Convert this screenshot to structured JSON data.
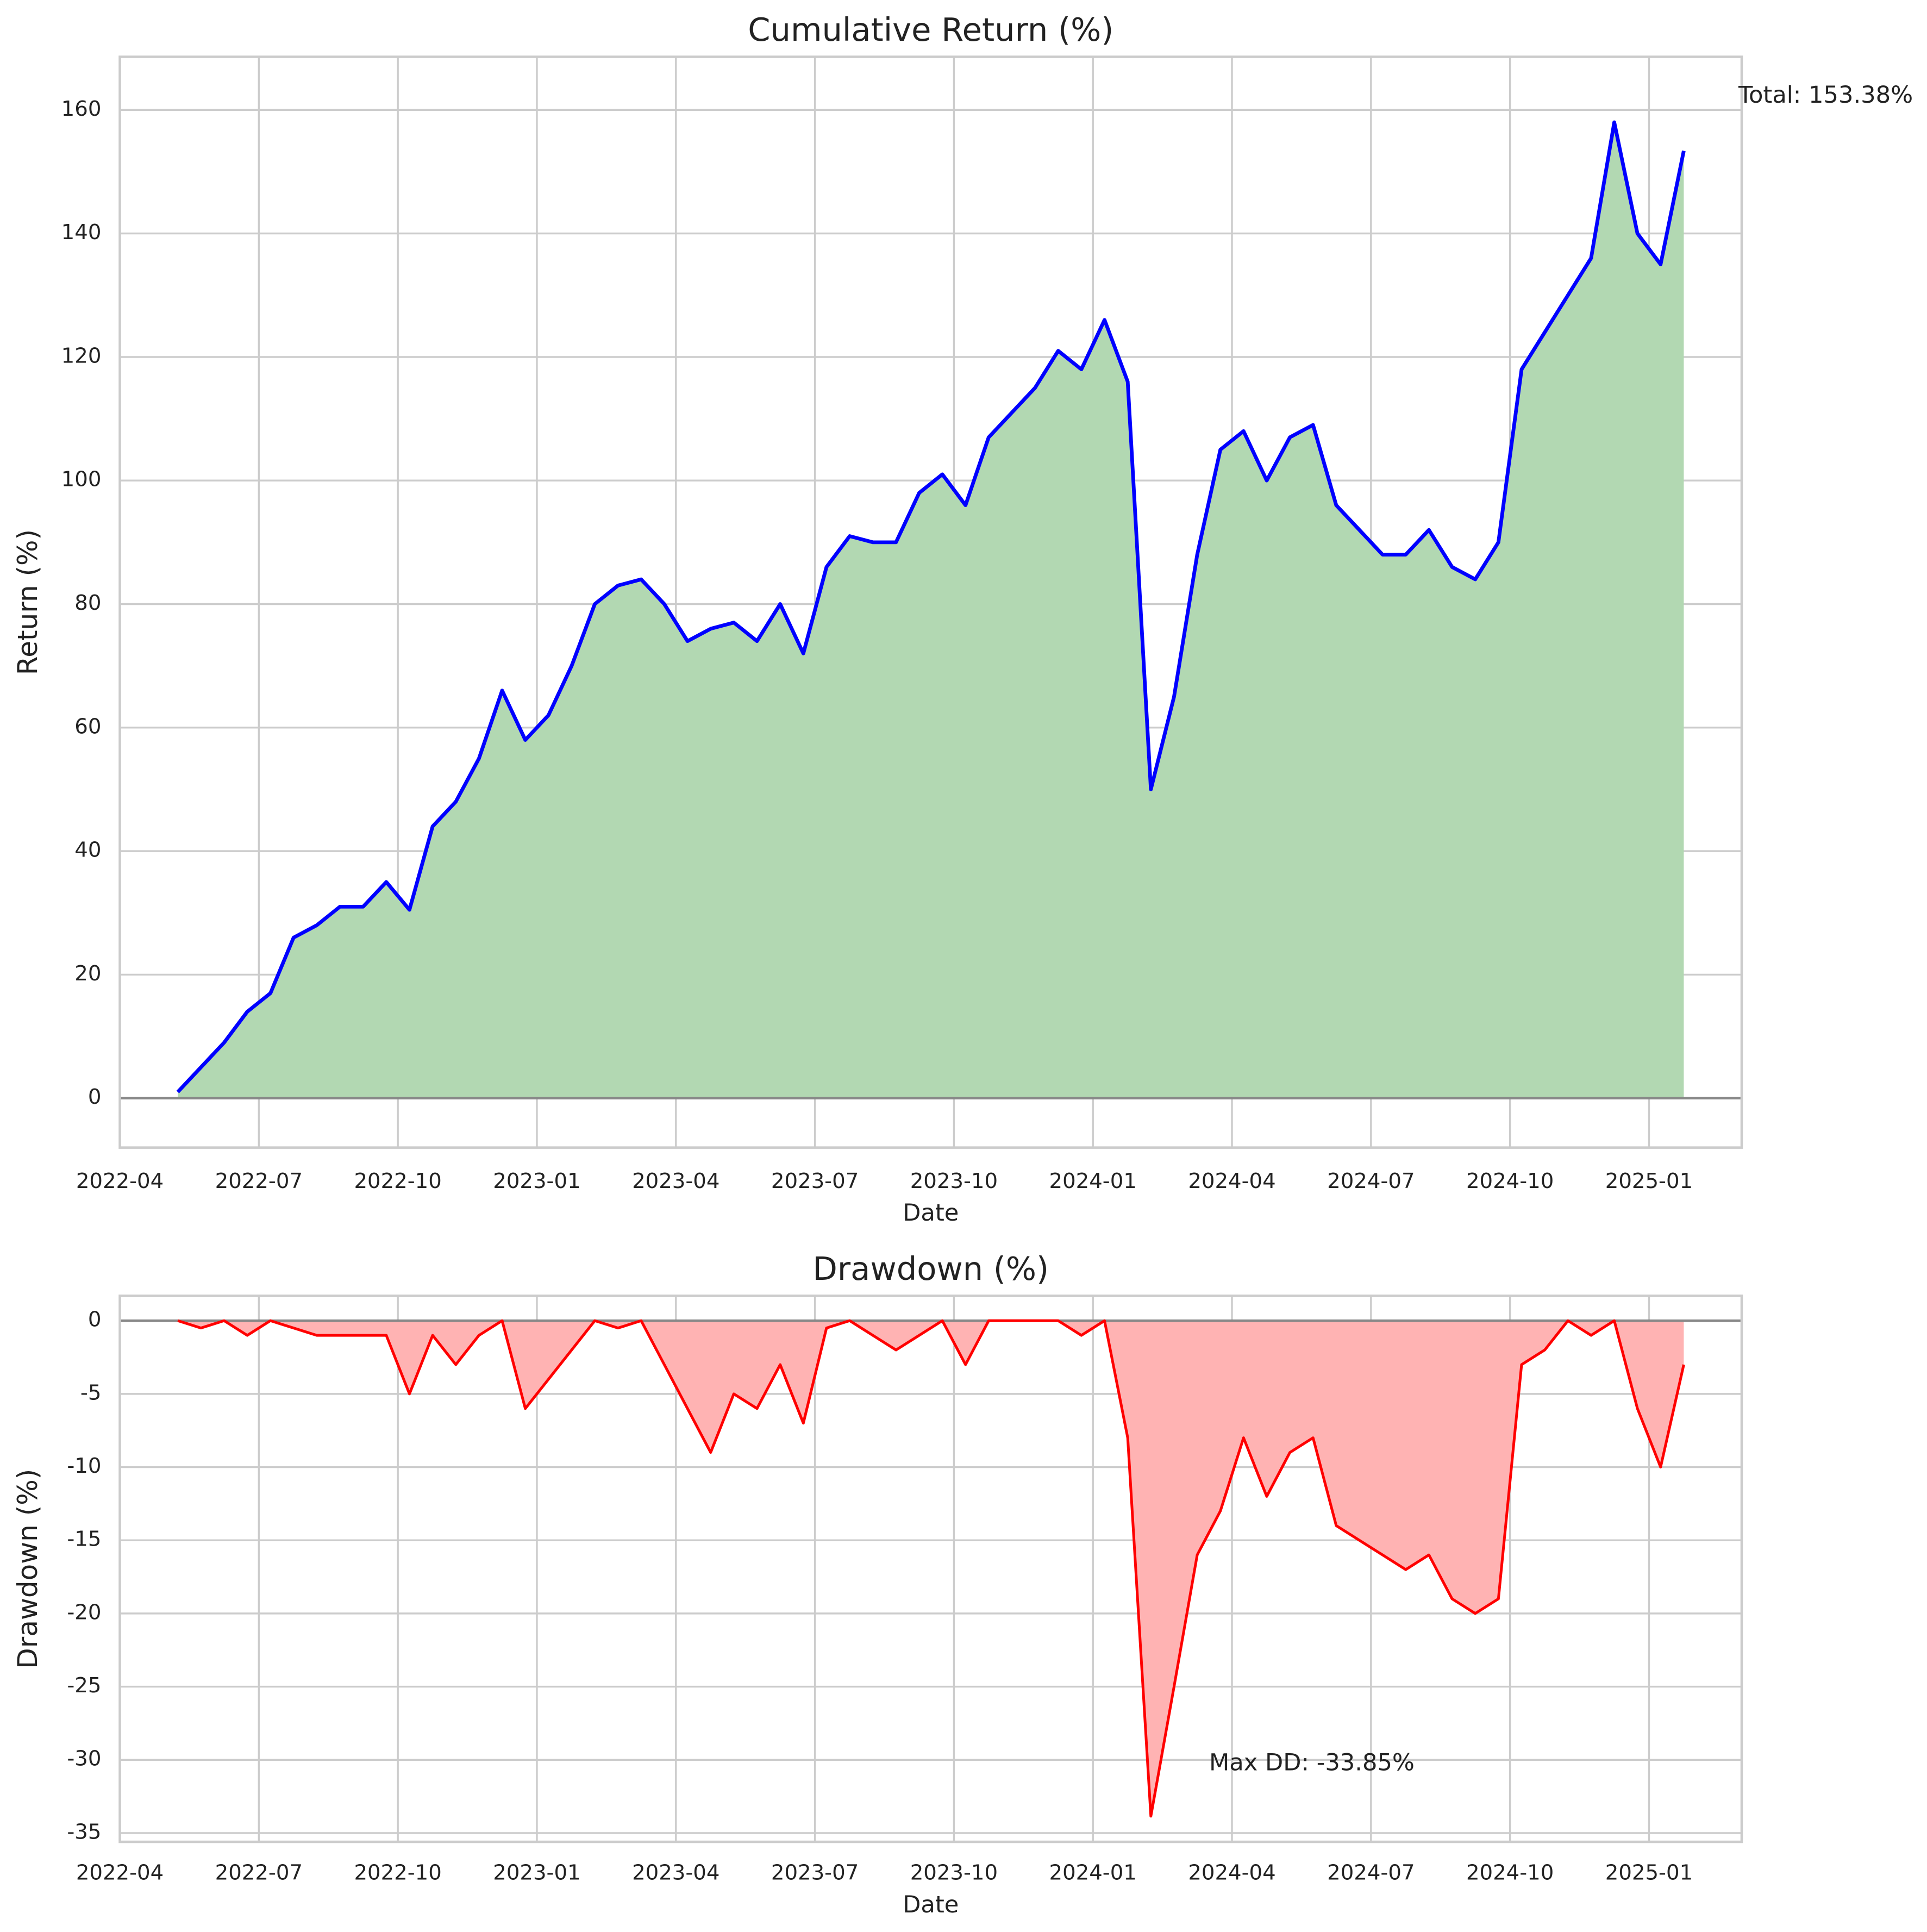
{
  "chart_data": [
    {
      "type": "line",
      "title": "Cumulative Return (%)",
      "xlabel": "Date",
      "ylabel": "Return (%)",
      "x": [
        "2022-05",
        "2022-05",
        "2022-06",
        "2022-06",
        "2022-07",
        "2022-07",
        "2022-08",
        "2022-08",
        "2022-09",
        "2022-09",
        "2022-10",
        "2022-10",
        "2022-11",
        "2022-11",
        "2022-12",
        "2022-12",
        "2023-01",
        "2023-01",
        "2023-02",
        "2023-02",
        "2023-03",
        "2023-03",
        "2023-04",
        "2023-04",
        "2023-05",
        "2023-05",
        "2023-06",
        "2023-06",
        "2023-07",
        "2023-07",
        "2023-08",
        "2023-08",
        "2023-09",
        "2023-09",
        "2023-10",
        "2023-10",
        "2023-11",
        "2023-11",
        "2023-12",
        "2023-12",
        "2024-01",
        "2024-01",
        "2024-02",
        "2024-02",
        "2024-03",
        "2024-03",
        "2024-04",
        "2024-04",
        "2024-05",
        "2024-05",
        "2024-06",
        "2024-06",
        "2024-07",
        "2024-07",
        "2024-08",
        "2024-08",
        "2024-09",
        "2024-09",
        "2024-10",
        "2024-10",
        "2024-11",
        "2024-11",
        "2024-12",
        "2024-12",
        "2025-01",
        "2025-01"
      ],
      "series": [
        {
          "color": "#0000ff",
          "fill": "#b2d8b2",
          "values": [
            1,
            5,
            9,
            14,
            17,
            26,
            28,
            31,
            31,
            35,
            30.5,
            44,
            48,
            55,
            66,
            58,
            62,
            70,
            80,
            83,
            84,
            80,
            74,
            76,
            77,
            74,
            80,
            72,
            86,
            91,
            90,
            90,
            98,
            101,
            96,
            107,
            111,
            115,
            121,
            118,
            126,
            116,
            50,
            65,
            88,
            105,
            108,
            100,
            107,
            109,
            96,
            92,
            88,
            88,
            92,
            86,
            84,
            90,
            118,
            124,
            130,
            136,
            158,
            140,
            135,
            153.38
          ]
        }
      ],
      "xlim": [
        "2022-04",
        "2025-03"
      ],
      "xticks": [
        "2022-04",
        "2022-07",
        "2022-10",
        "2023-01",
        "2023-04",
        "2023-07",
        "2023-10",
        "2024-01",
        "2024-04",
        "2024-07",
        "2024-10",
        "2025-01"
      ],
      "ylim": [
        -8,
        168.6
      ],
      "yticks": [
        0,
        20,
        40,
        60,
        80,
        100,
        120,
        140,
        160
      ],
      "grid": true,
      "annotation": "Total: 153.38%"
    },
    {
      "type": "line",
      "title": "Drawdown (%)",
      "xlabel": "Date",
      "ylabel": "Drawdown (%)",
      "x": [
        "2022-05",
        "2022-05",
        "2022-06",
        "2022-06",
        "2022-07",
        "2022-07",
        "2022-08",
        "2022-08",
        "2022-09",
        "2022-09",
        "2022-10",
        "2022-10",
        "2022-11",
        "2022-11",
        "2022-12",
        "2022-12",
        "2023-01",
        "2023-01",
        "2023-02",
        "2023-02",
        "2023-03",
        "2023-03",
        "2023-04",
        "2023-04",
        "2023-05",
        "2023-05",
        "2023-06",
        "2023-06",
        "2023-07",
        "2023-07",
        "2023-08",
        "2023-08",
        "2023-09",
        "2023-09",
        "2023-10",
        "2023-10",
        "2023-11",
        "2023-11",
        "2023-12",
        "2023-12",
        "2024-01",
        "2024-01",
        "2024-02",
        "2024-02",
        "2024-03",
        "2024-03",
        "2024-04",
        "2024-04",
        "2024-05",
        "2024-05",
        "2024-06",
        "2024-06",
        "2024-07",
        "2024-07",
        "2024-08",
        "2024-08",
        "2024-09",
        "2024-09",
        "2024-10",
        "2024-10",
        "2024-11",
        "2024-11",
        "2024-12",
        "2024-12",
        "2025-01",
        "2025-01"
      ],
      "series": [
        {
          "color": "#ff0000",
          "fill": "#ffb3b3",
          "values": [
            0,
            -0.5,
            0,
            -1,
            0,
            -0.5,
            -1,
            -1,
            -1,
            -1,
            -5,
            -1,
            -3,
            -1,
            0,
            -6,
            -4,
            -2,
            0,
            -0.5,
            0,
            -3,
            -6,
            -9,
            -5,
            -6,
            -3,
            -7,
            -0.5,
            0,
            -1,
            -2,
            -1,
            0,
            -3,
            0,
            0,
            0,
            0,
            -1,
            0,
            -8,
            -33.85,
            -25,
            -16,
            -13,
            -8,
            -12,
            -9,
            -8,
            -14,
            -15,
            -16,
            -17,
            -16,
            -19,
            -20,
            -19,
            -3,
            -2,
            0,
            -1,
            0,
            -6,
            -10,
            -3
          ]
        }
      ],
      "xlim": [
        "2022-04",
        "2025-03"
      ],
      "xticks": [
        "2022-04",
        "2022-07",
        "2022-10",
        "2023-01",
        "2023-04",
        "2023-07",
        "2023-10",
        "2024-01",
        "2024-04",
        "2024-07",
        "2024-10",
        "2025-01"
      ],
      "ylim": [
        -35.6,
        1.7
      ],
      "yticks": [
        -35,
        -30,
        -25,
        -20,
        -15,
        -10,
        -5,
        0
      ],
      "grid": true,
      "annotation": "Max DD: -33.85%"
    }
  ]
}
